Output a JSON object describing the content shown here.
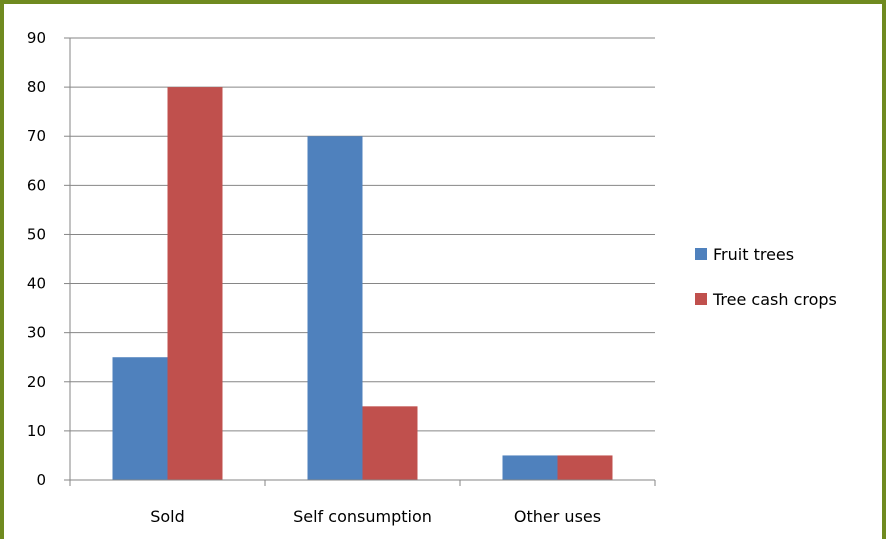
{
  "chart_data": {
    "type": "bar",
    "categories": [
      "Sold",
      "Self consumption",
      "Other uses"
    ],
    "series": [
      {
        "name": "Fruit trees",
        "values": [
          25,
          70,
          5
        ],
        "color": "#4f81bd"
      },
      {
        "name": "Tree cash crops",
        "values": [
          80,
          15,
          5
        ],
        "color": "#c0504d"
      }
    ],
    "title": "",
    "xlabel": "",
    "ylabel": "",
    "ylim": [
      0,
      90
    ],
    "yticks": [
      0,
      10,
      20,
      30,
      40,
      50,
      60,
      70,
      80,
      90
    ],
    "grid": true,
    "legend": "right"
  },
  "colors": {
    "frame": "#6f8a1f",
    "grid": "#868686"
  }
}
